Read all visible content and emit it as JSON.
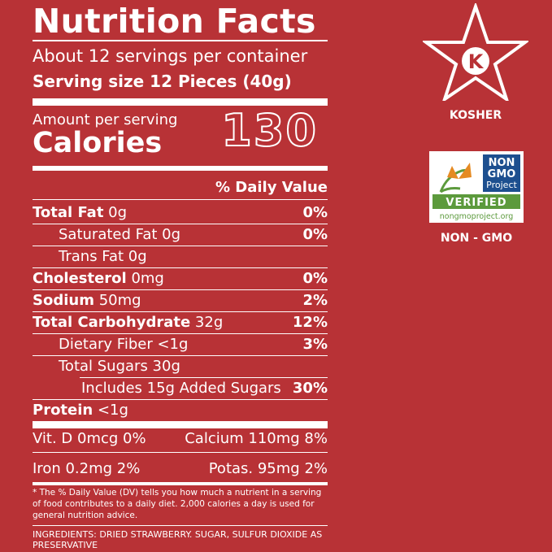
{
  "panel": {
    "title": "Nutrition Facts",
    "servings": "About 12 servings per container",
    "serving_size": "Serving size 12 Pieces (40g)",
    "amount_per_serving": "Amount per serving",
    "calories_label": "Calories",
    "calories_value": "130",
    "dv_header": "% Daily Value",
    "nutrients": [
      {
        "bold": "Total Fat",
        "amount": " 0g",
        "dv": "0%"
      },
      {
        "bold": "",
        "amount": "Saturated Fat 0g",
        "dv": "0%"
      },
      {
        "bold": "",
        "amount": "Trans Fat 0g",
        "dv": ""
      },
      {
        "bold": "Cholesterol",
        "amount": " 0mg",
        "dv": "0%"
      },
      {
        "bold": "Sodium",
        "amount": " 50mg",
        "dv": "2%"
      },
      {
        "bold": "Total Carbohydrate",
        "amount": " 32g",
        "dv": "12%"
      },
      {
        "bold": "",
        "amount": "Dietary Fiber <1g",
        "dv": "3%"
      },
      {
        "bold": "",
        "amount": "Total Sugars 30g",
        "dv": ""
      },
      {
        "bold": "",
        "amount": "Includes 15g Added Sugars",
        "dv": "30%"
      },
      {
        "bold": "Protein",
        "amount": " <1g",
        "dv": ""
      }
    ],
    "vitamins": {
      "vit_d": "Vit. D 0mcg 0%",
      "calcium": "Calcium 110mg 8%",
      "iron": "Iron 0.2mg 2%",
      "potassium": "Potas. 95mg 2%"
    },
    "footnote": "* The % Daily Value (DV) tells you how much a nutrient in a serving of food contributes to a daily diet. 2,000 calories a day is used for general nutrition advice.",
    "ingredients": "INGREDIENTS: DRIED STRAWBERRY. SUGAR, SULFUR DIOXIDE AS PRESERVATIVE"
  },
  "badges": {
    "kosher_symbol": "K",
    "kosher_label": "KOSHER",
    "nongmo_line1": "NON",
    "nongmo_line2": "GMO",
    "nongmo_line3": "Project",
    "nongmo_verified": "VERIFIED",
    "nongmo_url": "nongmoproject.org",
    "nongmo_label": "NON - GMO"
  },
  "colors": {
    "background": "#b83236",
    "text": "#ffffff",
    "nongmo_blue": "#1d4f8f",
    "nongmo_green": "#5c9a3c",
    "butterfly_orange": "#e58a22"
  }
}
